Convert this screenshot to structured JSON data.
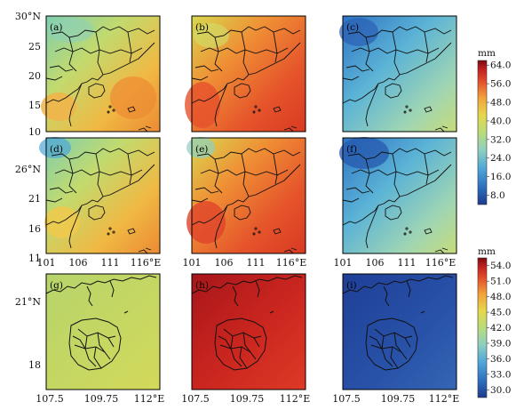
{
  "figure": {
    "rows": [
      {
        "id": "row1",
        "panels": [
          "(a)",
          "(b)",
          "(c)"
        ],
        "fields": [
          "moderate",
          "high",
          "low"
        ],
        "y_ticks": [
          "30°N",
          "25",
          "20",
          "15",
          "10"
        ]
      },
      {
        "id": "row2",
        "panels": [
          "(d)",
          "(e)",
          "(f)"
        ],
        "fields": [
          "moderate",
          "high",
          "low"
        ],
        "y_ticks": [
          "26°N",
          "21",
          "16",
          "11"
        ],
        "x_ticks": [
          "101",
          "106",
          "111",
          "116°E"
        ]
      },
      {
        "id": "row3",
        "panels": [
          "(g)",
          "(h)",
          "(i)"
        ],
        "fields": [
          "moderate",
          "high",
          "low"
        ],
        "y_ticks": [
          "21°N",
          "18"
        ],
        "x_ticks": [
          "107.5",
          "109.75",
          "112°E"
        ]
      }
    ],
    "colorbars": [
      {
        "id": "colorbar-top",
        "unit": "mm",
        "ticks": [
          "64.0",
          "56.0",
          "48.0",
          "40.0",
          "32.0",
          "24.0",
          "16.0",
          "8.0"
        ],
        "range": [
          4,
          66
        ]
      },
      {
        "id": "colorbar-bottom",
        "unit": "mm",
        "ticks": [
          "54.0",
          "51.0",
          "48.0",
          "45.0",
          "42.0",
          "39.0",
          "36.0",
          "33.0",
          "30.0"
        ],
        "range": [
          28.5,
          55.5
        ]
      }
    ],
    "palette": [
      "#1d3a8c",
      "#2e6fbf",
      "#4fa6d8",
      "#8fd0c0",
      "#b9dc7a",
      "#e6d84b",
      "#f2a33a",
      "#e5512c",
      "#c0201e",
      "#7a0c10"
    ]
  }
}
